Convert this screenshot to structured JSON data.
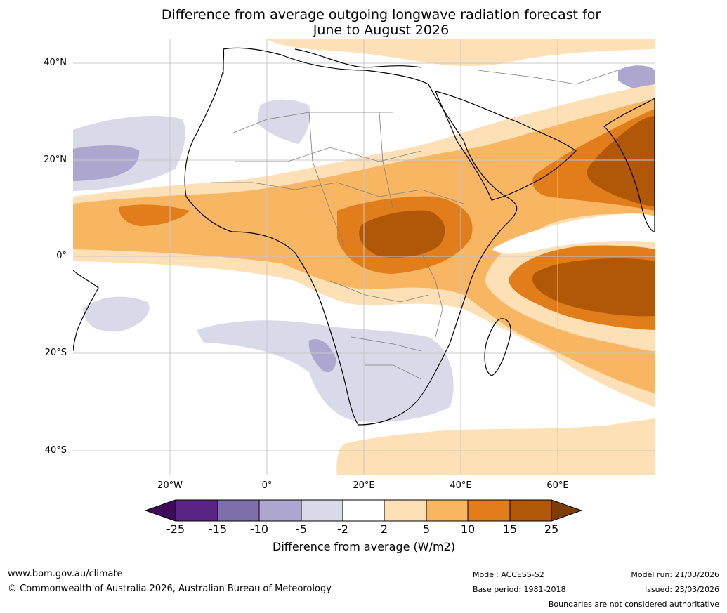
{
  "title": {
    "line1": "Difference from average outgoing longwave radiation forecast for",
    "line2": "June to August 2026"
  },
  "map": {
    "lat_labels": [
      "40°N",
      "20°N",
      "0°",
      "20°S",
      "40°S"
    ],
    "lon_labels": [
      "20°W",
      "0°",
      "20°E",
      "40°E",
      "60°E"
    ]
  },
  "colorbar": {
    "ticks": [
      "-25",
      "-15",
      "-10",
      "-5",
      "-2",
      "2",
      "5",
      "10",
      "15",
      "25"
    ],
    "colors": [
      "#3f0b59",
      "#5a2484",
      "#7e6fab",
      "#ada7cf",
      "#d9d9ea",
      "#ffffff",
      "#fde0b5",
      "#f8b562",
      "#e17d1a",
      "#b05708",
      "#7e3d04"
    ],
    "title": "Difference from average (W/m2)"
  },
  "footer": {
    "website": "www.bom.gov.au/climate",
    "copyright": "© Commonwealth of Australia 2026, Australian Bureau of Meteorology",
    "model": "Model: ACCESS-S2",
    "base_period": "Base period: 1981-2018",
    "model_run": "Model run: 21/03/2026",
    "issued": "Issued: 23/03/2026",
    "disclaimer": "Boundaries are not considered authoritative"
  }
}
